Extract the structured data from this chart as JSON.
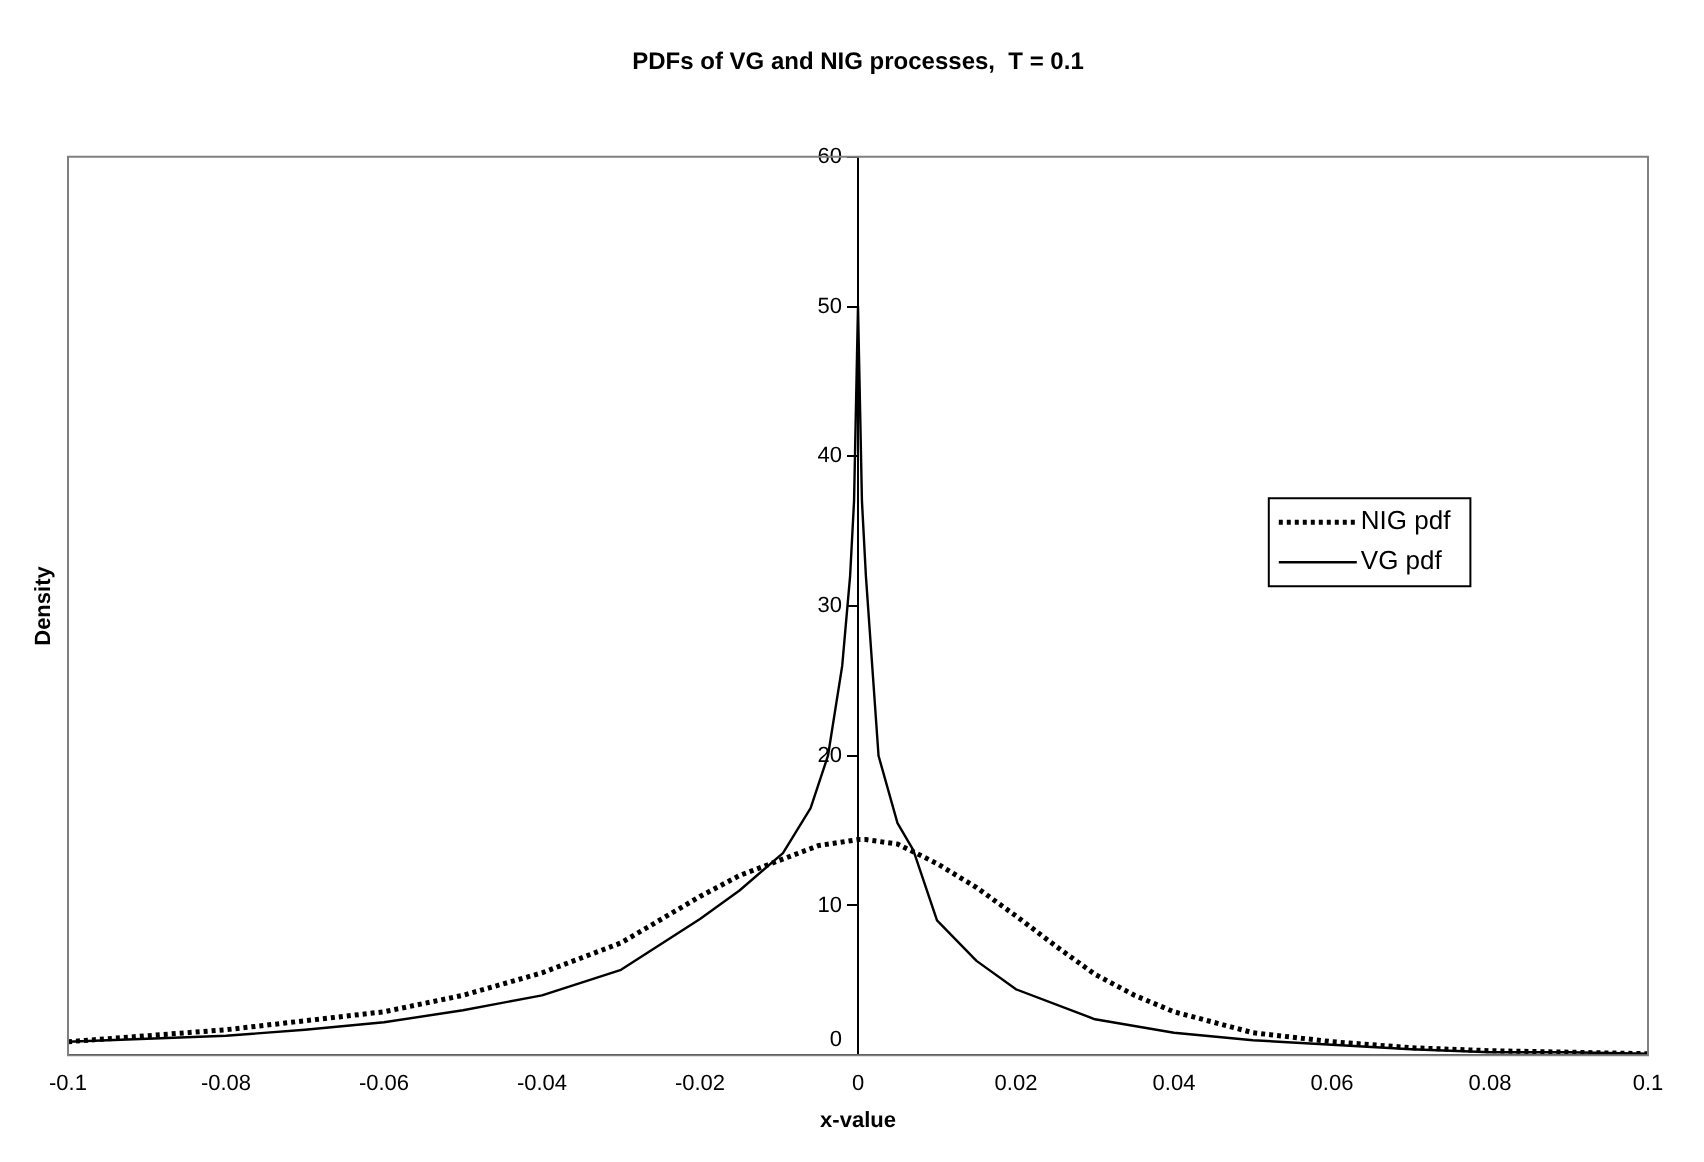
{
  "chart_data": {
    "type": "line",
    "title": "PDFs of VG and NIG processes,  T = 0.1",
    "xlabel": "x-value",
    "ylabel": "Density",
    "xlim": [
      -0.1,
      0.1
    ],
    "xticks": [
      -0.1,
      -0.08,
      -0.06,
      -0.04,
      -0.02,
      0,
      0.02,
      0.04,
      0.06,
      0.08,
      0.1
    ],
    "ylim": [
      0,
      60
    ],
    "yticks": [
      0,
      10,
      20,
      30,
      40,
      50,
      60
    ],
    "grid": false,
    "legend": "right",
    "marker": "none",
    "series": [
      {
        "name": "NIG pdf",
        "color": "#000000",
        "line_style": "dotted",
        "x": [
          -0.1,
          -0.09,
          -0.08,
          -0.07,
          -0.06,
          -0.05,
          -0.04,
          -0.03,
          -0.02,
          -0.015,
          -0.01,
          -0.005,
          0,
          0.001,
          0.005,
          0.01,
          0.015,
          0.02,
          0.025,
          0.03,
          0.035,
          0.04,
          0.05,
          0.06,
          0.07,
          0.08,
          0.09,
          0.1
        ],
        "values": [
          0.9,
          1.3,
          1.7,
          2.3,
          2.9,
          4.0,
          5.5,
          7.5,
          10.6,
          12.0,
          13.0,
          14.0,
          14.4,
          14.4,
          14.1,
          12.8,
          11.2,
          9.3,
          7.3,
          5.4,
          4.0,
          2.9,
          1.5,
          0.9,
          0.5,
          0.3,
          0.2,
          0.1
        ]
      },
      {
        "name": "VG pdf",
        "color": "#000000",
        "line_style": "solid",
        "x": [
          -0.1,
          -0.09,
          -0.08,
          -0.07,
          -0.06,
          -0.05,
          -0.04,
          -0.03,
          -0.02,
          -0.015,
          -0.0095,
          -0.006,
          -0.0038,
          -0.002,
          -0.001,
          -0.0005,
          0,
          0.0005,
          0.001,
          0.0026,
          0.005,
          0.007,
          0.01,
          0.015,
          0.02,
          0.03,
          0.04,
          0.05,
          0.06,
          0.07,
          0.08,
          0.09,
          0.1
        ],
        "values": [
          0.9,
          1.1,
          1.3,
          1.7,
          2.2,
          3.0,
          4.0,
          5.7,
          9.1,
          11.0,
          13.5,
          16.5,
          20,
          26,
          32,
          37,
          50,
          37,
          32,
          20,
          15.5,
          13.7,
          9.0,
          6.3,
          4.4,
          2.4,
          1.5,
          1.0,
          0.7,
          0.4,
          0.2,
          0.2,
          0.1
        ]
      }
    ]
  }
}
